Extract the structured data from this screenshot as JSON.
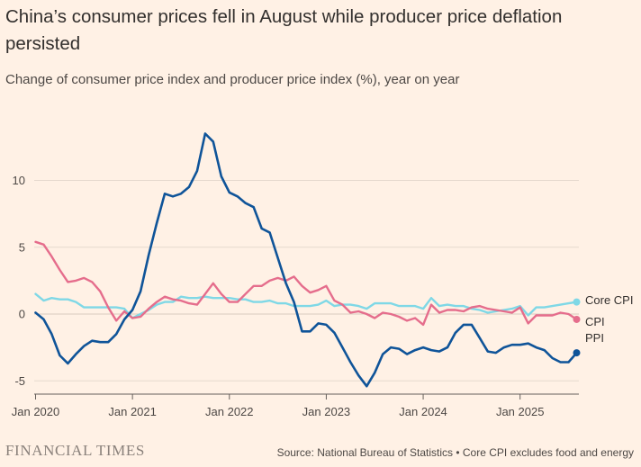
{
  "header": {
    "title": "China’s consumer prices fell in August while producer price deflation persisted",
    "subtitle": "Change of consumer price index and producer price index (%), year on year"
  },
  "footer": {
    "brand": "FINANCIAL TIMES",
    "source": "Source: National Bureau of Statistics • Core CPI excludes food and energy"
  },
  "chart_data": {
    "type": "line",
    "title": "China’s consumer prices fell in August while producer price deflation persisted",
    "subtitle": "Change of consumer price index and producer price index (%), year on year",
    "xlabel": "",
    "ylabel": "",
    "x": [
      "2020-01",
      "2020-02",
      "2020-03",
      "2020-04",
      "2020-05",
      "2020-06",
      "2020-07",
      "2020-08",
      "2020-09",
      "2020-10",
      "2020-11",
      "2020-12",
      "2021-01",
      "2021-02",
      "2021-03",
      "2021-04",
      "2021-05",
      "2021-06",
      "2021-07",
      "2021-08",
      "2021-09",
      "2021-10",
      "2021-11",
      "2021-12",
      "2022-01",
      "2022-02",
      "2022-03",
      "2022-04",
      "2022-05",
      "2022-06",
      "2022-07",
      "2022-08",
      "2022-09",
      "2022-10",
      "2022-11",
      "2022-12",
      "2023-01",
      "2023-02",
      "2023-03",
      "2023-04",
      "2023-05",
      "2023-06",
      "2023-07",
      "2023-08",
      "2023-09",
      "2023-10",
      "2023-11",
      "2023-12",
      "2024-01",
      "2024-02",
      "2024-03",
      "2024-04",
      "2024-05",
      "2024-06",
      "2024-07",
      "2024-08",
      "2024-09",
      "2024-10",
      "2024-11",
      "2024-12",
      "2025-01",
      "2025-02",
      "2025-03",
      "2025-04",
      "2025-05",
      "2025-06",
      "2025-07",
      "2025-08"
    ],
    "x_ticks": [
      {
        "label": "Jan 2020",
        "index": 0
      },
      {
        "label": "Jan 2021",
        "index": 12
      },
      {
        "label": "Jan 2022",
        "index": 24
      },
      {
        "label": "Jan 2023",
        "index": 36
      },
      {
        "label": "Jan 2024",
        "index": 48
      },
      {
        "label": "Jan 2025",
        "index": 60
      }
    ],
    "yticks": [
      10,
      5,
      0,
      -5
    ],
    "ylim": [
      -5.6,
      14
    ],
    "grid": true,
    "series": [
      {
        "name": "Core CPI",
        "color": "#7fd8e6",
        "values": [
          1.5,
          1.0,
          1.2,
          1.1,
          1.1,
          0.9,
          0.5,
          0.5,
          0.5,
          0.5,
          0.5,
          0.4,
          -0.3,
          0.0,
          0.3,
          0.7,
          0.9,
          0.9,
          1.3,
          1.2,
          1.2,
          1.3,
          1.2,
          1.2,
          1.2,
          1.1,
          1.1,
          0.9,
          0.9,
          1.0,
          0.8,
          0.8,
          0.6,
          0.6,
          0.6,
          0.7,
          1.0,
          0.6,
          0.7,
          0.7,
          0.6,
          0.4,
          0.8,
          0.8,
          0.8,
          0.6,
          0.6,
          0.6,
          0.4,
          1.2,
          0.6,
          0.7,
          0.6,
          0.6,
          0.4,
          0.3,
          0.1,
          0.2,
          0.3,
          0.4,
          0.6,
          -0.1,
          0.5,
          0.5,
          0.6,
          0.7,
          0.8,
          0.9
        ]
      },
      {
        "name": "CPI",
        "color": "#e56d8c",
        "values": [
          5.4,
          5.2,
          4.3,
          3.3,
          2.4,
          2.5,
          2.7,
          2.4,
          1.7,
          0.5,
          -0.5,
          0.2,
          -0.3,
          -0.2,
          0.4,
          0.9,
          1.3,
          1.1,
          1.0,
          0.8,
          0.7,
          1.5,
          2.3,
          1.5,
          0.9,
          0.9,
          1.5,
          2.1,
          2.1,
          2.5,
          2.7,
          2.5,
          2.8,
          2.1,
          1.6,
          1.8,
          2.1,
          1.0,
          0.7,
          0.1,
          0.2,
          0.0,
          -0.3,
          0.1,
          0.0,
          -0.2,
          -0.5,
          -0.3,
          -0.8,
          0.7,
          0.1,
          0.3,
          0.3,
          0.2,
          0.5,
          0.6,
          0.4,
          0.3,
          0.2,
          0.1,
          0.5,
          -0.7,
          -0.1,
          -0.1,
          -0.1,
          0.1,
          0.0,
          -0.4
        ]
      },
      {
        "name": "PPI",
        "color": "#0f5499",
        "values": [
          0.1,
          -0.4,
          -1.5,
          -3.1,
          -3.7,
          -3.0,
          -2.4,
          -2.0,
          -2.1,
          -2.1,
          -1.5,
          -0.4,
          0.3,
          1.7,
          4.4,
          6.8,
          9.0,
          8.8,
          9.0,
          9.5,
          10.7,
          13.5,
          12.9,
          10.3,
          9.1,
          8.8,
          8.3,
          8.0,
          6.4,
          6.1,
          4.2,
          2.3,
          0.9,
          -1.3,
          -1.3,
          -0.7,
          -0.8,
          -1.4,
          -2.5,
          -3.6,
          -4.6,
          -5.4,
          -4.4,
          -3.0,
          -2.5,
          -2.6,
          -3.0,
          -2.7,
          -2.5,
          -2.7,
          -2.8,
          -2.5,
          -1.4,
          -0.8,
          -0.8,
          -1.8,
          -2.8,
          -2.9,
          -2.5,
          -2.3,
          -2.3,
          -2.2,
          -2.5,
          -2.7,
          -3.3,
          -3.6,
          -3.6,
          -2.9
        ]
      }
    ]
  }
}
